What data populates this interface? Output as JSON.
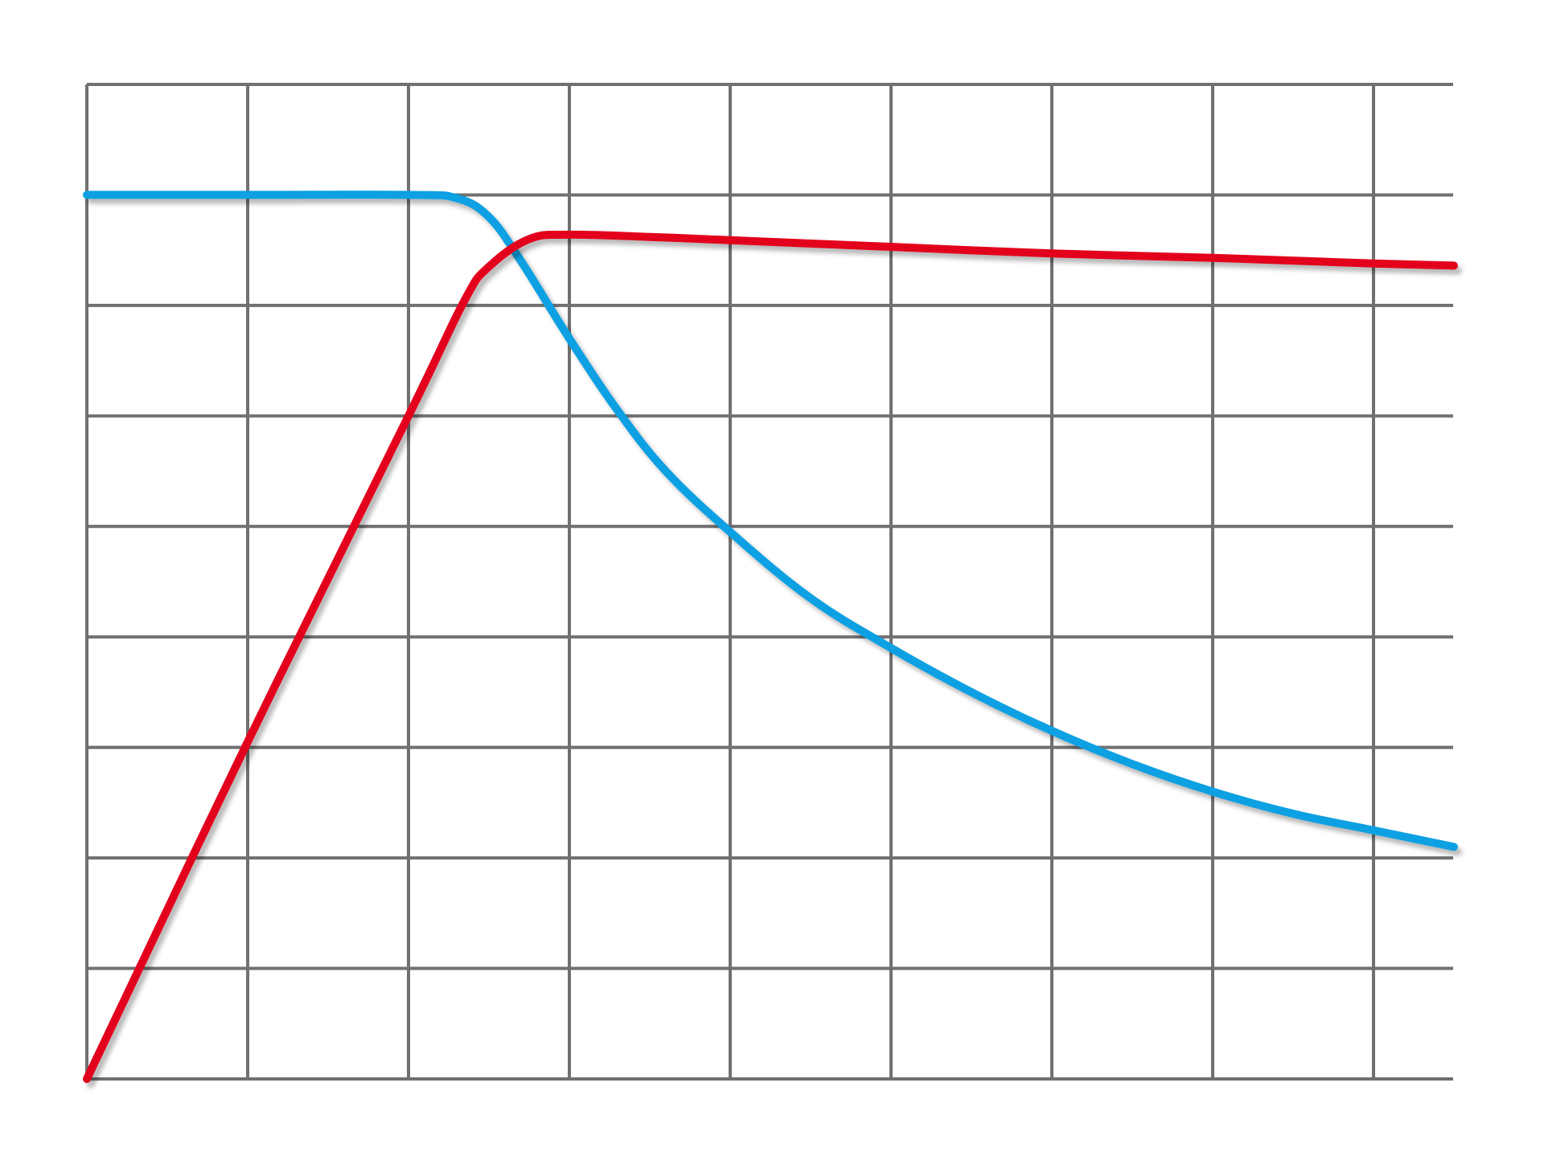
{
  "chart_data": {
    "type": "line",
    "title": "",
    "xlabel": "",
    "ylabel": "",
    "xlim": [
      0,
      8.5
    ],
    "ylim": [
      0,
      9
    ],
    "grid": true,
    "x_gridlines": [
      0,
      1,
      2,
      3,
      4,
      5,
      6,
      7,
      8
    ],
    "y_gridlines": [
      0,
      1,
      2,
      3,
      4,
      5,
      6,
      7,
      8,
      9
    ],
    "legend": "bottom",
    "series": [
      {
        "color": "#0aa0e2",
        "x": [
          0,
          1,
          2,
          2.3,
          2.5,
          2.7,
          3,
          3.3,
          3.6,
          4,
          4.5,
          5,
          5.5,
          6,
          6.5,
          7,
          7.5,
          8,
          8.5
        ],
        "y": [
          8,
          8,
          8,
          7.97,
          7.8,
          7.4,
          6.7,
          6.05,
          5.5,
          4.95,
          4.35,
          3.9,
          3.5,
          3.15,
          2.85,
          2.6,
          2.4,
          2.25,
          2.1
        ]
      },
      {
        "color": "#e2001a",
        "x": [
          0,
          1,
          2,
          2.35,
          2.5,
          2.75,
          3,
          3.5,
          4,
          5,
          6,
          7,
          8,
          8.5
        ],
        "y": [
          0,
          3.05,
          6.0,
          7.05,
          7.35,
          7.6,
          7.64,
          7.62,
          7.59,
          7.53,
          7.47,
          7.43,
          7.38,
          7.36
        ]
      }
    ]
  }
}
